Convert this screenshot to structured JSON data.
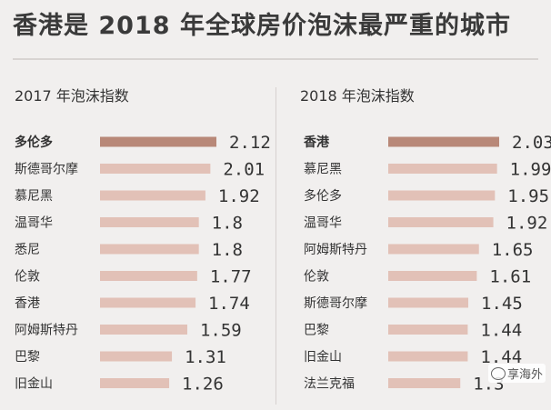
{
  "title": "香港是 2018 年全球房价泡沫最严重的城市",
  "watermark": "享海外",
  "colors": {
    "highlight": "#b88878",
    "bar": "#e2c1b7",
    "background": "#f1efee"
  },
  "chart_data": [
    {
      "type": "bar",
      "orientation": "horizontal",
      "title": "2017 年泡沫指数",
      "categories": [
        "多伦多",
        "斯德哥尔摩",
        "慕尼黑",
        "温哥华",
        "悉尼",
        "伦敦",
        "香港",
        "阿姆斯特丹",
        "巴黎",
        "旧金山"
      ],
      "values": [
        2.12,
        2.01,
        1.92,
        1.8,
        1.8,
        1.77,
        1.74,
        1.59,
        1.31,
        1.26
      ],
      "labels": [
        "2.12",
        "2.01",
        "1.92",
        "1.8",
        "1.8",
        "1.77",
        "1.74",
        "1.59",
        "1.31",
        "1.26"
      ],
      "highlight_index": 0
    },
    {
      "type": "bar",
      "orientation": "horizontal",
      "title": "2018 年泡沫指数",
      "categories": [
        "香港",
        "慕尼黑",
        "多伦多",
        "温哥华",
        "阿姆斯特丹",
        "伦敦",
        "斯德哥尔摩",
        "巴黎",
        "旧金山",
        "法兰克福"
      ],
      "values": [
        2.03,
        1.99,
        1.95,
        1.92,
        1.65,
        1.61,
        1.45,
        1.44,
        1.44,
        1.3
      ],
      "labels": [
        "2.03",
        "1.99",
        "1.95",
        "1.92",
        "1.65",
        "1.61",
        "1.45",
        "1.44",
        "1.44",
        "1.3"
      ],
      "highlight_index": 0
    }
  ]
}
